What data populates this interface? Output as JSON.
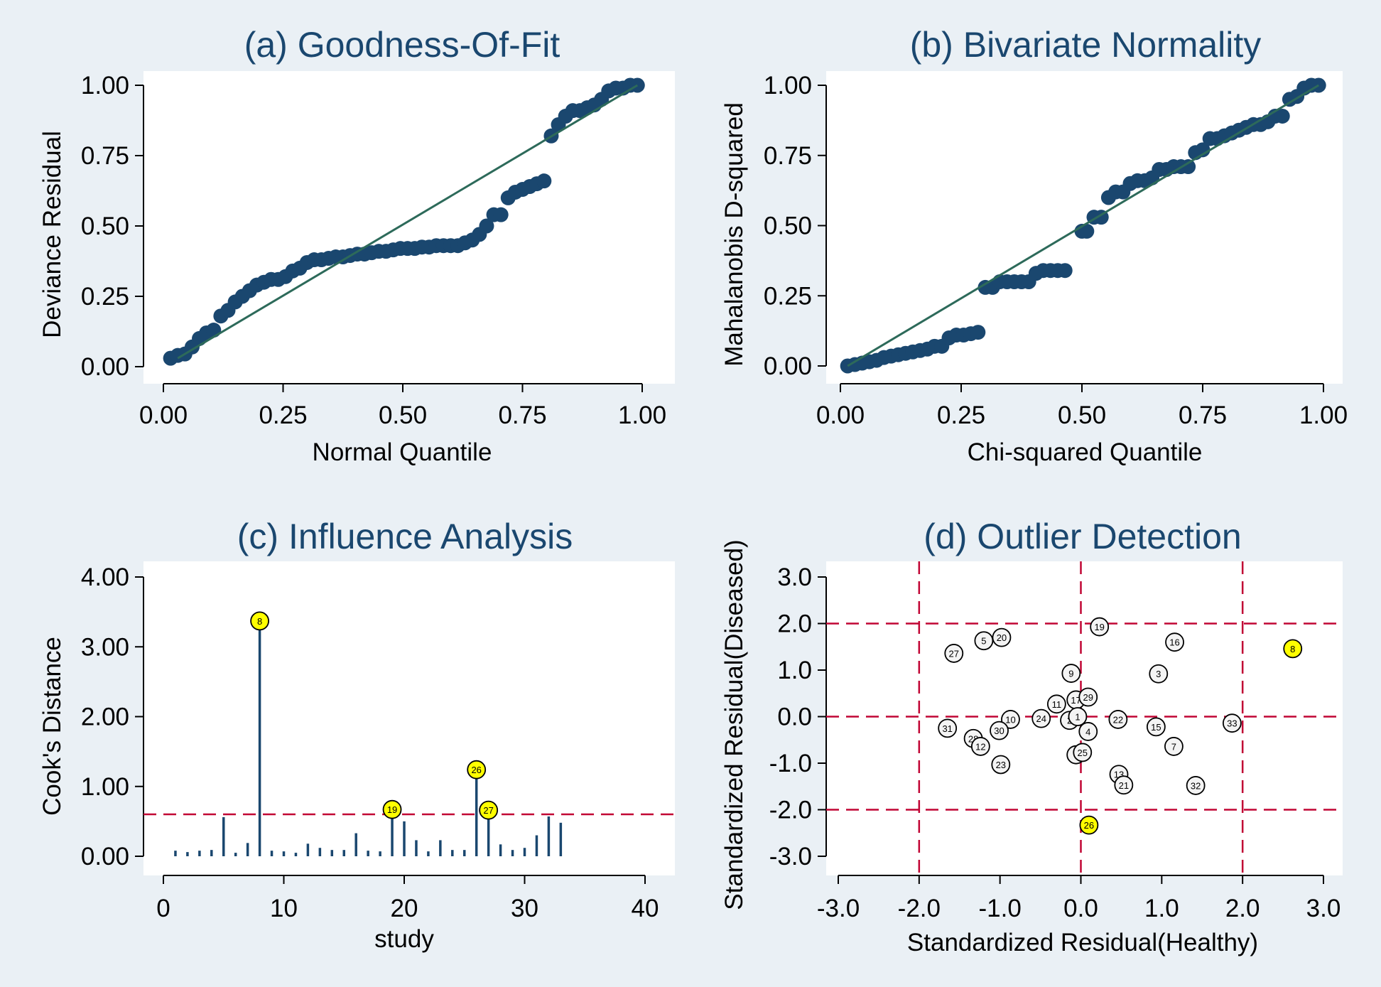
{
  "colors": {
    "background": "#eaf0f5",
    "plot_bg": "#ffffff",
    "title": "#1a476f",
    "text": "#000000",
    "marker": "#1a476f",
    "fit_line": "#2d6a5a",
    "ref_line": "#c10534",
    "highlight": "#ffff00",
    "spike": "#1a476f"
  },
  "chart_data": [
    {
      "id": "a",
      "type": "scatter",
      "title": "(a) Goodness-Of-Fit",
      "xlabel": "Normal Quantile",
      "ylabel": "Deviance Residual",
      "xlim": [
        0,
        1
      ],
      "ylim": [
        0,
        1
      ],
      "xticks": [
        "0.00",
        "0.25",
        "0.50",
        "0.75",
        "1.00"
      ],
      "yticks": [
        "0.00",
        "0.25",
        "0.50",
        "0.75",
        "1.00"
      ],
      "fit_line": [
        [
          0.03,
          0.03
        ],
        [
          0.99,
          1.0
        ]
      ],
      "points": [
        [
          0.015,
          0.03
        ],
        [
          0.03,
          0.04
        ],
        [
          0.045,
          0.045
        ],
        [
          0.06,
          0.07
        ],
        [
          0.075,
          0.1
        ],
        [
          0.09,
          0.12
        ],
        [
          0.105,
          0.13
        ],
        [
          0.12,
          0.18
        ],
        [
          0.135,
          0.2
        ],
        [
          0.15,
          0.23
        ],
        [
          0.165,
          0.25
        ],
        [
          0.18,
          0.27
        ],
        [
          0.195,
          0.29
        ],
        [
          0.21,
          0.3
        ],
        [
          0.225,
          0.31
        ],
        [
          0.24,
          0.31
        ],
        [
          0.255,
          0.32
        ],
        [
          0.27,
          0.34
        ],
        [
          0.285,
          0.35
        ],
        [
          0.3,
          0.37
        ],
        [
          0.315,
          0.38
        ],
        [
          0.33,
          0.38
        ],
        [
          0.345,
          0.385
        ],
        [
          0.36,
          0.39
        ],
        [
          0.375,
          0.39
        ],
        [
          0.39,
          0.395
        ],
        [
          0.405,
          0.4
        ],
        [
          0.42,
          0.4
        ],
        [
          0.435,
          0.405
        ],
        [
          0.45,
          0.41
        ],
        [
          0.465,
          0.41
        ],
        [
          0.48,
          0.415
        ],
        [
          0.495,
          0.42
        ],
        [
          0.51,
          0.42
        ],
        [
          0.525,
          0.42
        ],
        [
          0.54,
          0.425
        ],
        [
          0.555,
          0.425
        ],
        [
          0.57,
          0.43
        ],
        [
          0.585,
          0.43
        ],
        [
          0.6,
          0.43
        ],
        [
          0.615,
          0.43
        ],
        [
          0.63,
          0.44
        ],
        [
          0.645,
          0.45
        ],
        [
          0.66,
          0.47
        ],
        [
          0.675,
          0.5
        ],
        [
          0.69,
          0.54
        ],
        [
          0.705,
          0.54
        ],
        [
          0.72,
          0.6
        ],
        [
          0.735,
          0.62
        ],
        [
          0.75,
          0.63
        ],
        [
          0.765,
          0.64
        ],
        [
          0.78,
          0.65
        ],
        [
          0.795,
          0.66
        ],
        [
          0.81,
          0.82
        ],
        [
          0.825,
          0.86
        ],
        [
          0.84,
          0.89
        ],
        [
          0.855,
          0.91
        ],
        [
          0.87,
          0.91
        ],
        [
          0.885,
          0.92
        ],
        [
          0.9,
          0.93
        ],
        [
          0.915,
          0.95
        ],
        [
          0.93,
          0.98
        ],
        [
          0.945,
          0.99
        ],
        [
          0.96,
          0.99
        ],
        [
          0.975,
          1.0
        ],
        [
          0.99,
          1.0
        ]
      ]
    },
    {
      "id": "b",
      "type": "scatter",
      "title": "(b) Bivariate Normality",
      "xlabel": "Chi-squared Quantile",
      "ylabel": "Mahalanobis D-squared",
      "xlim": [
        0,
        1
      ],
      "ylim": [
        0,
        1
      ],
      "xticks": [
        "0.00",
        "0.25",
        "0.50",
        "0.75",
        "1.00"
      ],
      "yticks": [
        "0.00",
        "0.25",
        "0.50",
        "0.75",
        "1.00"
      ],
      "fit_line": [
        [
          0.015,
          0.0
        ],
        [
          0.99,
          1.0
        ]
      ],
      "points": [
        [
          0.015,
          0.0
        ],
        [
          0.03,
          0.005
        ],
        [
          0.045,
          0.01
        ],
        [
          0.06,
          0.015
        ],
        [
          0.075,
          0.02
        ],
        [
          0.09,
          0.03
        ],
        [
          0.105,
          0.035
        ],
        [
          0.12,
          0.04
        ],
        [
          0.135,
          0.045
        ],
        [
          0.15,
          0.05
        ],
        [
          0.165,
          0.055
        ],
        [
          0.18,
          0.06
        ],
        [
          0.195,
          0.07
        ],
        [
          0.21,
          0.07
        ],
        [
          0.225,
          0.1
        ],
        [
          0.24,
          0.11
        ],
        [
          0.255,
          0.11
        ],
        [
          0.27,
          0.115
        ],
        [
          0.285,
          0.12
        ],
        [
          0.3,
          0.28
        ],
        [
          0.315,
          0.28
        ],
        [
          0.33,
          0.3
        ],
        [
          0.345,
          0.3
        ],
        [
          0.36,
          0.3
        ],
        [
          0.375,
          0.3
        ],
        [
          0.39,
          0.3
        ],
        [
          0.405,
          0.33
        ],
        [
          0.42,
          0.34
        ],
        [
          0.435,
          0.34
        ],
        [
          0.45,
          0.34
        ],
        [
          0.465,
          0.34
        ],
        [
          0.5,
          0.48
        ],
        [
          0.51,
          0.48
        ],
        [
          0.525,
          0.53
        ],
        [
          0.54,
          0.53
        ],
        [
          0.555,
          0.6
        ],
        [
          0.57,
          0.62
        ],
        [
          0.585,
          0.62
        ],
        [
          0.6,
          0.65
        ],
        [
          0.615,
          0.66
        ],
        [
          0.63,
          0.66
        ],
        [
          0.645,
          0.67
        ],
        [
          0.66,
          0.7
        ],
        [
          0.675,
          0.7
        ],
        [
          0.69,
          0.71
        ],
        [
          0.705,
          0.71
        ],
        [
          0.72,
          0.71
        ],
        [
          0.735,
          0.76
        ],
        [
          0.75,
          0.77
        ],
        [
          0.765,
          0.81
        ],
        [
          0.78,
          0.81
        ],
        [
          0.795,
          0.82
        ],
        [
          0.81,
          0.83
        ],
        [
          0.825,
          0.84
        ],
        [
          0.84,
          0.85
        ],
        [
          0.855,
          0.86
        ],
        [
          0.87,
          0.86
        ],
        [
          0.885,
          0.87
        ],
        [
          0.9,
          0.89
        ],
        [
          0.915,
          0.89
        ],
        [
          0.93,
          0.95
        ],
        [
          0.945,
          0.96
        ],
        [
          0.96,
          0.99
        ],
        [
          0.975,
          1.0
        ],
        [
          0.99,
          1.0
        ]
      ]
    },
    {
      "id": "c",
      "type": "spike",
      "title": "(c) Influence Analysis",
      "xlabel": "study",
      "ylabel": "Cook's Distance",
      "xlim": [
        0,
        40
      ],
      "ylim": [
        0,
        4
      ],
      "xticks": [
        "0",
        "10",
        "20",
        "30",
        "40"
      ],
      "yticks": [
        "0.00",
        "1.00",
        "2.00",
        "3.00",
        "4.00"
      ],
      "threshold": 0.6,
      "studies": [
        1,
        2,
        3,
        4,
        5,
        6,
        7,
        8,
        9,
        10,
        11,
        12,
        13,
        14,
        15,
        16,
        17,
        18,
        19,
        20,
        21,
        22,
        23,
        24,
        25,
        26,
        27,
        28,
        29,
        30,
        31,
        32,
        33
      ],
      "values": [
        0.08,
        0.06,
        0.08,
        0.09,
        0.56,
        0.05,
        0.19,
        3.37,
        0.08,
        0.07,
        0.05,
        0.18,
        0.12,
        0.09,
        0.09,
        0.33,
        0.08,
        0.07,
        0.67,
        0.5,
        0.23,
        0.07,
        0.23,
        0.09,
        0.09,
        1.24,
        0.66,
        0.17,
        0.09,
        0.12,
        0.3,
        0.57,
        0.48
      ],
      "highlighted": [
        {
          "label": "8",
          "x": 8,
          "y": 3.37
        },
        {
          "label": "19",
          "x": 19,
          "y": 0.67
        },
        {
          "label": "26",
          "x": 26,
          "y": 1.24
        },
        {
          "label": "27",
          "x": 27,
          "y": 0.66
        }
      ]
    },
    {
      "id": "d",
      "type": "scatter-labeled",
      "title": "(d) Outlier Detection",
      "xlabel": "Standardized Residual(Healthy)",
      "ylabel": "Standardized Residual(Diseased)",
      "xlim": [
        -3,
        3
      ],
      "ylim": [
        -3,
        3
      ],
      "xticks": [
        "-3.0",
        "-2.0",
        "-1.0",
        "0.0",
        "1.0",
        "2.0",
        "3.0"
      ],
      "yticks": [
        "-3.0",
        "-2.0",
        "-1.0",
        "0.0",
        "1.0",
        "2.0",
        "3.0"
      ],
      "ref_x": [
        -2,
        0,
        2
      ],
      "ref_y": [
        -2,
        0,
        2
      ],
      "points": [
        {
          "label": "27",
          "x": -1.57,
          "y": 1.36,
          "hl": false
        },
        {
          "label": "5",
          "x": -1.2,
          "y": 1.63,
          "hl": false
        },
        {
          "label": "20",
          "x": -0.98,
          "y": 1.7,
          "hl": false
        },
        {
          "label": "19",
          "x": 0.23,
          "y": 1.93,
          "hl": false
        },
        {
          "label": "16",
          "x": 1.16,
          "y": 1.6,
          "hl": false
        },
        {
          "label": "8",
          "x": 2.62,
          "y": 1.46,
          "hl": true
        },
        {
          "label": "9",
          "x": -0.12,
          "y": 0.93,
          "hl": false
        },
        {
          "label": "3",
          "x": 0.96,
          "y": 0.92,
          "hl": false
        },
        {
          "label": "11",
          "x": -0.3,
          "y": 0.27,
          "hl": false
        },
        {
          "label": "17",
          "x": -0.06,
          "y": 0.36,
          "hl": false
        },
        {
          "label": "29",
          "x": 0.09,
          "y": 0.42,
          "hl": false
        },
        {
          "label": "24",
          "x": -0.49,
          "y": -0.04,
          "hl": false
        },
        {
          "label": "10",
          "x": -0.87,
          "y": -0.06,
          "hl": false
        },
        {
          "label": "22",
          "x": 0.46,
          "y": -0.06,
          "hl": false
        },
        {
          "label": "2",
          "x": -0.14,
          "y": -0.08,
          "hl": false
        },
        {
          "label": "1",
          "x": -0.04,
          "y": 0.0,
          "hl": false
        },
        {
          "label": "4",
          "x": 0.09,
          "y": -0.32,
          "hl": false
        },
        {
          "label": "31",
          "x": -1.65,
          "y": -0.25,
          "hl": false
        },
        {
          "label": "30",
          "x": -1.01,
          "y": -0.3,
          "hl": false
        },
        {
          "label": "28",
          "x": -1.33,
          "y": -0.47,
          "hl": false
        },
        {
          "label": "12",
          "x": -1.24,
          "y": -0.64,
          "hl": false
        },
        {
          "label": "15",
          "x": 0.93,
          "y": -0.22,
          "hl": false
        },
        {
          "label": "33",
          "x": 1.87,
          "y": -0.14,
          "hl": false
        },
        {
          "label": "7",
          "x": 1.15,
          "y": -0.64,
          "hl": false
        },
        {
          "label": "6",
          "x": -0.06,
          "y": -0.82,
          "hl": false
        },
        {
          "label": "25",
          "x": 0.02,
          "y": -0.77,
          "hl": false
        },
        {
          "label": "23",
          "x": -0.99,
          "y": -1.03,
          "hl": false
        },
        {
          "label": "13",
          "x": 0.47,
          "y": -1.24,
          "hl": false
        },
        {
          "label": "21",
          "x": 0.53,
          "y": -1.47,
          "hl": false
        },
        {
          "label": "32",
          "x": 1.42,
          "y": -1.48,
          "hl": false
        },
        {
          "label": "26",
          "x": 0.1,
          "y": -2.33,
          "hl": true
        }
      ]
    }
  ]
}
